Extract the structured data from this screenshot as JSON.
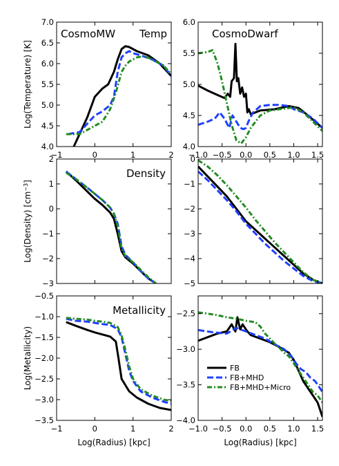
{
  "figure": {
    "ylabels": [
      "Log(Temperature) [K]",
      "Log(Density) [cm",
      "Log(Metallicity)"
    ],
    "ylabel_density_sup": "−3",
    "ylabel_density_end": "]",
    "xlabels": [
      "Log(Radius) [kpc]",
      "Log(Radius) [kpc]"
    ],
    "legend": [
      "FB",
      "FB+MHD",
      "FB+MHD+Micro"
    ],
    "colors": {
      "FB": "#000000",
      "FB+MHD": "#1f3fff",
      "FB+MHD+Micro": "#228b22"
    }
  },
  "chart_data": [
    {
      "type": "line",
      "panel": "mw-temp",
      "titles": [
        "CosmoMW",
        "Temp"
      ],
      "xlim": [
        -1,
        2
      ],
      "ylim": [
        4.0,
        7.0
      ],
      "xticks": [
        "−1",
        "0",
        "1",
        "2"
      ],
      "xtick_values": [
        -1,
        0,
        1,
        2
      ],
      "yticks": [
        "4.0",
        "4.5",
        "5.0",
        "5.5",
        "6.0",
        "6.5",
        "7.0"
      ],
      "ytick_values": [
        4.0,
        4.5,
        5.0,
        5.5,
        6.0,
        6.5,
        7.0
      ],
      "series": [
        {
          "name": "FB",
          "x": [
            -0.55,
            -0.4,
            -0.2,
            0.0,
            0.2,
            0.35,
            0.45,
            0.5,
            0.6,
            0.7,
            0.8,
            0.9,
            1.1,
            1.4,
            1.7,
            2.0
          ],
          "y": [
            4.0,
            4.3,
            4.7,
            5.2,
            5.4,
            5.5,
            5.7,
            5.8,
            6.1,
            6.35,
            6.42,
            6.4,
            6.3,
            6.2,
            6.0,
            5.7
          ]
        },
        {
          "name": "FB+MHD",
          "x": [
            -0.7,
            -0.4,
            -0.2,
            0.0,
            0.2,
            0.4,
            0.5,
            0.6,
            0.7,
            0.8,
            0.9,
            1.0,
            1.2,
            1.5,
            1.8,
            2.0
          ],
          "y": [
            4.3,
            4.35,
            4.55,
            4.75,
            4.85,
            5.0,
            5.2,
            5.8,
            6.15,
            6.25,
            6.3,
            6.25,
            6.2,
            6.1,
            5.95,
            5.7
          ]
        },
        {
          "name": "FB+MHD+Micro",
          "x": [
            -0.75,
            -0.4,
            -0.2,
            0.0,
            0.2,
            0.4,
            0.55,
            0.7,
            0.8,
            0.9,
            1.0,
            1.1,
            1.3,
            1.5,
            1.8,
            2.0
          ],
          "y": [
            4.3,
            4.3,
            4.4,
            4.5,
            4.6,
            4.9,
            5.3,
            5.8,
            5.95,
            6.05,
            6.1,
            6.15,
            6.18,
            6.1,
            5.95,
            5.75
          ]
        }
      ]
    },
    {
      "type": "line",
      "panel": "dwarf-temp",
      "titles": [
        "CosmoDwarf"
      ],
      "xlim": [
        -1.0,
        1.6
      ],
      "ylim": [
        4.0,
        6.0
      ],
      "xticks": [
        "−1.0",
        "−0.5",
        "0.0",
        "0.5",
        "1.0",
        "1.5"
      ],
      "xtick_values": [
        -1.0,
        -0.5,
        0.0,
        0.5,
        1.0,
        1.5
      ],
      "yticks": [
        "4.0",
        "4.5",
        "5.0",
        "5.5",
        "6.0"
      ],
      "ytick_values": [
        4.0,
        4.5,
        5.0,
        5.5,
        6.0
      ],
      "series": [
        {
          "name": "FB",
          "x": [
            -1.0,
            -0.8,
            -0.6,
            -0.45,
            -0.38,
            -0.33,
            -0.3,
            -0.25,
            -0.22,
            -0.19,
            -0.16,
            -0.12,
            -0.08,
            -0.04,
            0.0,
            0.03,
            0.06,
            0.1,
            0.3,
            0.6,
            0.9,
            1.1,
            1.3,
            1.6
          ],
          "y": [
            4.98,
            4.9,
            4.83,
            4.78,
            4.85,
            4.8,
            5.05,
            5.1,
            5.65,
            5.05,
            5.1,
            4.85,
            4.95,
            4.8,
            4.85,
            4.55,
            4.6,
            4.52,
            4.58,
            4.6,
            4.65,
            4.62,
            4.5,
            4.3
          ]
        },
        {
          "name": "FB+MHD",
          "x": [
            -1.0,
            -0.8,
            -0.65,
            -0.55,
            -0.45,
            -0.35,
            -0.28,
            -0.2,
            -0.12,
            -0.05,
            0.0,
            0.05,
            0.15,
            0.3,
            0.5,
            0.7,
            0.9,
            1.0,
            1.2,
            1.4,
            1.6
          ],
          "y": [
            4.35,
            4.4,
            4.45,
            4.55,
            4.45,
            4.3,
            4.5,
            4.4,
            4.3,
            4.28,
            4.3,
            4.4,
            4.55,
            4.65,
            4.67,
            4.67,
            4.65,
            4.6,
            4.55,
            4.45,
            4.3
          ]
        },
        {
          "name": "FB+MHD+Micro",
          "x": [
            -1.0,
            -0.8,
            -0.7,
            -0.6,
            -0.5,
            -0.4,
            -0.3,
            -0.2,
            -0.1,
            0.0,
            0.1,
            0.3,
            0.5,
            0.7,
            0.9,
            1.0,
            1.2,
            1.4,
            1.6
          ],
          "y": [
            5.5,
            5.52,
            5.55,
            5.35,
            5.05,
            4.7,
            4.35,
            4.1,
            4.05,
            4.15,
            4.3,
            4.5,
            4.58,
            4.6,
            4.62,
            4.63,
            4.55,
            4.4,
            4.25
          ]
        }
      ]
    },
    {
      "type": "line",
      "panel": "mw-density",
      "titles": [
        "Density"
      ],
      "xlim": [
        -1,
        2
      ],
      "ylim": [
        -3,
        2
      ],
      "xticks": [],
      "xtick_values": [],
      "yticks": [
        "−3",
        "−2",
        "−1",
        "0",
        "1",
        "2"
      ],
      "ytick_values": [
        -3,
        -2,
        -1,
        0,
        1,
        2
      ],
      "series": [
        {
          "name": "FB",
          "x": [
            -0.75,
            -0.5,
            -0.2,
            0.0,
            0.2,
            0.4,
            0.5,
            0.6,
            0.7,
            0.8,
            1.0,
            1.2,
            1.4,
            1.6
          ],
          "y": [
            1.5,
            1.15,
            0.7,
            0.4,
            0.15,
            -0.15,
            -0.4,
            -1.0,
            -1.7,
            -1.95,
            -2.2,
            -2.5,
            -2.8,
            -3.0
          ]
        },
        {
          "name": "FB+MHD",
          "x": [
            -0.75,
            -0.5,
            -0.2,
            0.0,
            0.2,
            0.4,
            0.5,
            0.6,
            0.7,
            0.8,
            1.0,
            1.2,
            1.4,
            1.6
          ],
          "y": [
            1.5,
            1.2,
            0.85,
            0.6,
            0.35,
            0.05,
            -0.2,
            -0.6,
            -1.5,
            -1.85,
            -2.15,
            -2.5,
            -2.8,
            -3.0
          ]
        },
        {
          "name": "FB+MHD+Micro",
          "x": [
            -0.75,
            -0.5,
            -0.2,
            0.0,
            0.2,
            0.4,
            0.5,
            0.6,
            0.7,
            0.8,
            1.0,
            1.2,
            1.4,
            1.6
          ],
          "y": [
            1.45,
            1.2,
            0.85,
            0.6,
            0.35,
            0.05,
            -0.2,
            -0.7,
            -1.6,
            -1.9,
            -2.15,
            -2.45,
            -2.75,
            -3.0
          ]
        }
      ]
    },
    {
      "type": "line",
      "panel": "dwarf-density",
      "titles": [],
      "xlim": [
        -1.0,
        1.6
      ],
      "ylim": [
        -5,
        0
      ],
      "xticks": [],
      "xtick_values": [],
      "yticks": [
        "−5",
        "−4",
        "−3",
        "−2",
        "−1",
        "0"
      ],
      "ytick_values": [
        -5,
        -4,
        -3,
        -2,
        -1,
        0
      ],
      "series": [
        {
          "name": "FB",
          "x": [
            -1.0,
            -0.8,
            -0.6,
            -0.4,
            -0.2,
            0.0,
            0.2,
            0.4,
            0.6,
            0.8,
            1.0,
            1.2,
            1.4,
            1.6
          ],
          "y": [
            -0.3,
            -0.7,
            -1.1,
            -1.5,
            -2.0,
            -2.5,
            -2.85,
            -3.2,
            -3.55,
            -3.9,
            -4.25,
            -4.6,
            -4.85,
            -5.0
          ]
        },
        {
          "name": "FB+MHD",
          "x": [
            -1.0,
            -0.8,
            -0.6,
            -0.4,
            -0.2,
            0.0,
            0.2,
            0.4,
            0.6,
            0.8,
            1.0,
            1.2,
            1.4,
            1.6
          ],
          "y": [
            -0.5,
            -0.85,
            -1.25,
            -1.65,
            -2.1,
            -2.6,
            -3.0,
            -3.4,
            -3.75,
            -4.1,
            -4.4,
            -4.7,
            -4.9,
            -5.0
          ]
        },
        {
          "name": "FB+MHD+Micro",
          "x": [
            -1.0,
            -0.8,
            -0.6,
            -0.4,
            -0.2,
            0.0,
            0.2,
            0.4,
            0.6,
            0.8,
            1.0,
            1.2,
            1.4,
            1.6
          ],
          "y": [
            -0.05,
            -0.3,
            -0.65,
            -1.05,
            -1.5,
            -1.95,
            -2.45,
            -2.9,
            -3.35,
            -3.75,
            -4.15,
            -4.55,
            -4.85,
            -5.0
          ]
        }
      ]
    },
    {
      "type": "line",
      "panel": "mw-metallicity",
      "titles": [
        "Metallicity"
      ],
      "xlim": [
        -1,
        2
      ],
      "ylim": [
        -3.5,
        -0.5
      ],
      "xticks": [
        "−1",
        "0",
        "1",
        "2"
      ],
      "xtick_values": [
        -1,
        0,
        1,
        2
      ],
      "yticks": [
        "−3.5",
        "−3.0",
        "−2.5",
        "−2.0",
        "−1.5",
        "−1.0",
        "−0.5"
      ],
      "ytick_values": [
        -3.5,
        -3.0,
        -2.5,
        -2.0,
        -1.5,
        -1.0,
        -0.5
      ],
      "series": [
        {
          "name": "FB",
          "x": [
            -0.75,
            -0.5,
            -0.2,
            0.0,
            0.2,
            0.4,
            0.55,
            0.62,
            0.7,
            0.8,
            0.9,
            1.1,
            1.4,
            1.7,
            2.0
          ],
          "y": [
            -1.13,
            -1.22,
            -1.32,
            -1.38,
            -1.43,
            -1.48,
            -1.6,
            -2.0,
            -2.5,
            -2.65,
            -2.8,
            -2.95,
            -3.1,
            -3.2,
            -3.25
          ]
        },
        {
          "name": "FB+MHD",
          "x": [
            -0.75,
            -0.5,
            -0.2,
            0.0,
            0.2,
            0.4,
            0.6,
            0.7,
            0.8,
            0.9,
            1.0,
            1.2,
            1.5,
            1.8,
            2.0
          ],
          "y": [
            -1.05,
            -1.1,
            -1.12,
            -1.15,
            -1.18,
            -1.2,
            -1.3,
            -1.5,
            -1.9,
            -2.3,
            -2.55,
            -2.8,
            -2.95,
            -3.05,
            -3.1
          ]
        },
        {
          "name": "FB+MHD+Micro",
          "x": [
            -0.75,
            -0.5,
            -0.2,
            0.0,
            0.2,
            0.4,
            0.6,
            0.7,
            0.8,
            0.9,
            1.0,
            1.2,
            1.5,
            1.8,
            2.0
          ],
          "y": [
            -1.03,
            -1.05,
            -1.07,
            -1.1,
            -1.12,
            -1.15,
            -1.25,
            -1.45,
            -1.8,
            -2.2,
            -2.5,
            -2.75,
            -2.9,
            -3.0,
            -3.03
          ]
        }
      ]
    },
    {
      "type": "line",
      "panel": "dwarf-metallicity",
      "titles": [],
      "xlim": [
        -1.0,
        1.6
      ],
      "ylim": [
        -4.0,
        -2.25
      ],
      "xticks": [
        "−1.0",
        "−0.5",
        "0.0",
        "0.5",
        "1.0",
        "1.5"
      ],
      "xtick_values": [
        -1.0,
        -0.5,
        0.0,
        0.5,
        1.0,
        1.5
      ],
      "yticks": [
        "−4.0",
        "−3.5",
        "−3.0",
        "−2.5"
      ],
      "ytick_values": [
        -4.0,
        -3.5,
        -3.0,
        -2.5
      ],
      "series": [
        {
          "name": "FB",
          "x": [
            -1.0,
            -0.8,
            -0.6,
            -0.4,
            -0.3,
            -0.22,
            -0.18,
            -0.12,
            -0.07,
            -0.02,
            0.03,
            0.1,
            0.3,
            0.5,
            0.7,
            0.9,
            1.0,
            1.1,
            1.2,
            1.3,
            1.4,
            1.5,
            1.6
          ],
          "y": [
            -2.88,
            -2.83,
            -2.78,
            -2.75,
            -2.65,
            -2.75,
            -2.55,
            -2.72,
            -2.65,
            -2.7,
            -2.75,
            -2.8,
            -2.85,
            -2.9,
            -2.97,
            -3.05,
            -3.15,
            -3.3,
            -3.45,
            -3.55,
            -3.65,
            -3.75,
            -3.95
          ]
        },
        {
          "name": "FB+MHD",
          "x": [
            -1.0,
            -0.7,
            -0.4,
            -0.2,
            0.0,
            0.2,
            0.4,
            0.6,
            0.8,
            0.95,
            1.05,
            1.15,
            1.25,
            1.35,
            1.45,
            1.6
          ],
          "y": [
            -2.73,
            -2.76,
            -2.78,
            -2.7,
            -2.75,
            -2.8,
            -2.85,
            -2.93,
            -3.0,
            -3.1,
            -3.2,
            -3.28,
            -3.32,
            -3.4,
            -3.45,
            -3.6
          ]
        },
        {
          "name": "FB+MHD+Micro",
          "x": [
            -1.0,
            -0.8,
            -0.6,
            -0.4,
            -0.2,
            0.0,
            0.2,
            0.3,
            0.4,
            0.5,
            0.6,
            0.7,
            0.8,
            0.9,
            1.0,
            1.1,
            1.2,
            1.3,
            1.4,
            1.5,
            1.6
          ],
          "y": [
            -2.48,
            -2.5,
            -2.52,
            -2.55,
            -2.57,
            -2.6,
            -2.62,
            -2.68,
            -2.78,
            -2.85,
            -2.92,
            -2.98,
            -3.05,
            -3.1,
            -3.2,
            -3.3,
            -3.4,
            -3.5,
            -3.6,
            -3.65,
            -3.75
          ]
        }
      ]
    }
  ]
}
